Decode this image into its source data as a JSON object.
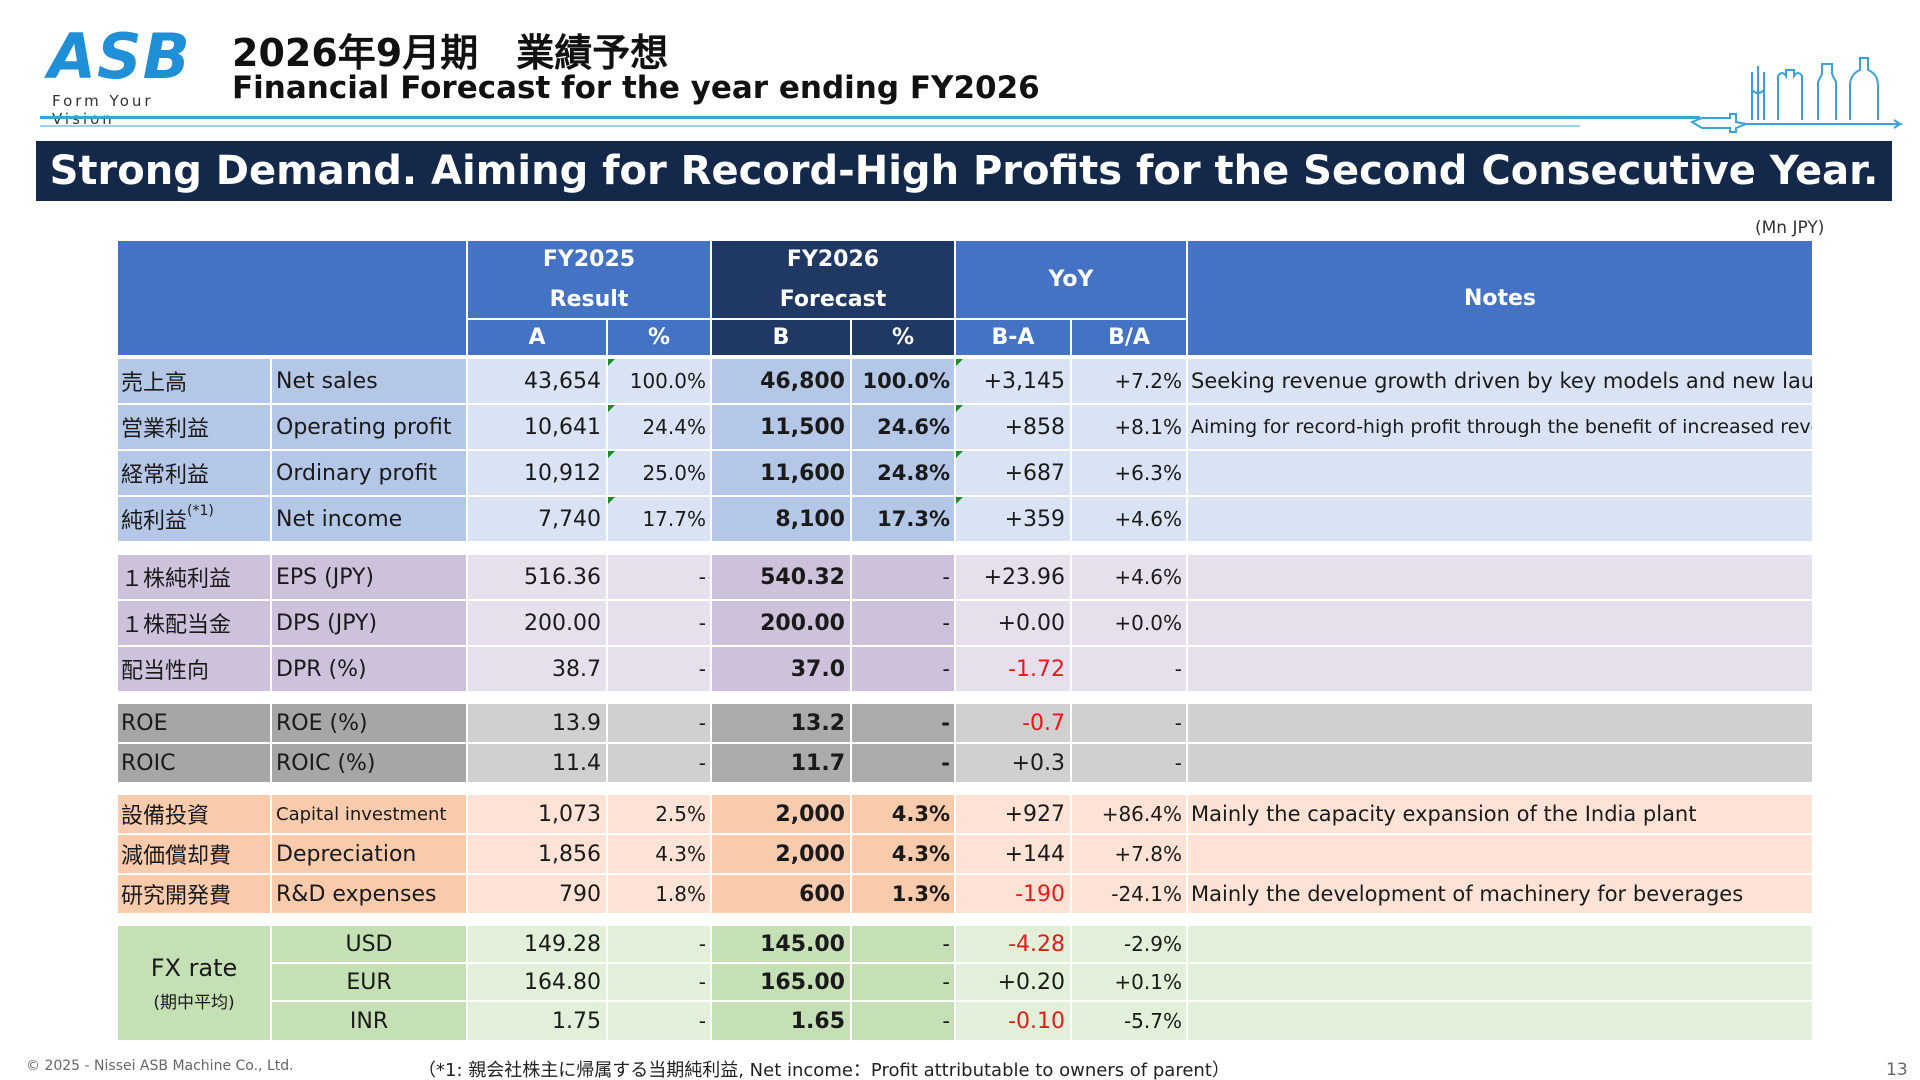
{
  "header": {
    "logo": "ASB",
    "logo_tagline": "Form Your Vision",
    "title_jp": "2026年9月期　業績予想",
    "title_en": "Financial Forecast for the year ending FY2026"
  },
  "banner": "Strong Demand. Aiming for Record-High Profits for the Second Consecutive Year.",
  "unit": "(Mn JPY)",
  "table_header": {
    "fy2025": "FY2025",
    "result": "Result",
    "fy2026": "FY2026",
    "forecast": "Forecast",
    "yoy": "YoY",
    "notes": "Notes",
    "a": "A",
    "pct": "%",
    "b": "B",
    "ba": "B-A",
    "bda": "B/A"
  },
  "rows_profit": [
    {
      "jp": "売上高",
      "en": "Net sales",
      "a": "43,654",
      "ap": "100.0%",
      "b": "46,800",
      "bp": "100.0%",
      "ba": "+3,145",
      "bda": "+7.2%",
      "notes": "Seeking revenue growth driven by key models and new launches"
    },
    {
      "jp": "営業利益",
      "en": "Operating profit",
      "a": "10,641",
      "ap": "24.4%",
      "b": "11,500",
      "bp": "24.6%",
      "ba": "+858",
      "bda": "+8.1%",
      "notes": "Aiming for record-high profit through the benefit of increased revenue"
    },
    {
      "jp": "経常利益",
      "en": "Ordinary profit",
      "a": "10,912",
      "ap": "25.0%",
      "b": "11,600",
      "bp": "24.8%",
      "ba": "+687",
      "bda": "+6.3%",
      "notes": ""
    },
    {
      "jp": "純利益",
      "jp_sup": "(*1)",
      "en": "Net income",
      "a": "7,740",
      "ap": "17.7%",
      "b": "8,100",
      "bp": "17.3%",
      "ba": "+359",
      "bda": "+4.6%",
      "notes": ""
    }
  ],
  "rows_share": [
    {
      "jp": "１株純利益",
      "en": "EPS (JPY)",
      "a": "516.36",
      "ap": "-",
      "b": "540.32",
      "bp": "-",
      "ba": "+23.96",
      "bda": "+4.6%",
      "notes": ""
    },
    {
      "jp": "１株配当金",
      "en": "DPS (JPY)",
      "a": "200.00",
      "ap": "-",
      "b": "200.00",
      "bp": "-",
      "ba": "+0.00",
      "bda": "+0.0%",
      "notes": ""
    },
    {
      "jp": "配当性向",
      "en": "DPR (%)",
      "a": "38.7",
      "ap": "-",
      "b": "37.0",
      "bp": "-",
      "ba": "-1.72",
      "bda": "-",
      "notes": ""
    }
  ],
  "rows_return": [
    {
      "jp": "ROE",
      "en": "ROE (%)",
      "a": "13.9",
      "ap": "-",
      "b": "13.2",
      "bp": "-",
      "ba": "-0.7",
      "bda": "-",
      "notes": ""
    },
    {
      "jp": "ROIC",
      "en": "ROIC (%)",
      "a": "11.4",
      "ap": "-",
      "b": "11.7",
      "bp": "-",
      "ba": "+0.3",
      "bda": "-",
      "notes": ""
    }
  ],
  "rows_invest": [
    {
      "jp": "設備投資",
      "en": "Capital investment",
      "a": "1,073",
      "ap": "2.5%",
      "b": "2,000",
      "bp": "4.3%",
      "ba": "+927",
      "bda": "+86.4%",
      "notes": "Mainly the capacity expansion of the India plant"
    },
    {
      "jp": "減価償却費",
      "en": "Depreciation",
      "a": "1,856",
      "ap": "4.3%",
      "b": "2,000",
      "bp": "4.3%",
      "ba": "+144",
      "bda": "+7.8%",
      "notes": ""
    },
    {
      "jp": "研究開発費",
      "en": "R&D expenses",
      "a": "790",
      "ap": "1.8%",
      "b": "600",
      "bp": "1.3%",
      "ba": "-190",
      "bda": "-24.1%",
      "notes": "Mainly the development of machinery for beverages"
    }
  ],
  "fx": {
    "label": "FX rate",
    "sub": "(期中平均)",
    "rows": [
      {
        "cur": "USD",
        "a": "149.28",
        "ap": "-",
        "b": "145.00",
        "bp": "-",
        "ba": "-4.28",
        "bda": "-2.9%",
        "notes": ""
      },
      {
        "cur": "EUR",
        "a": "164.80",
        "ap": "-",
        "b": "165.00",
        "bp": "-",
        "ba": "+0.20",
        "bda": "+0.1%",
        "notes": ""
      },
      {
        "cur": "INR",
        "a": "1.75",
        "ap": "-",
        "b": "1.65",
        "bp": "-",
        "ba": "-0.10",
        "bda": "-5.7%",
        "notes": ""
      }
    ]
  },
  "footer": {
    "copyright": "© 2025 - Nissei ASB Machine Co., Ltd.",
    "note": "（*1: 親会社株主に帰属する当期純利益, Net income：Profit attributable to owners of parent）",
    "page": "13"
  },
  "colors": {
    "banner": "#14294a",
    "header_blue": "#4472c4",
    "header_dark": "#203864",
    "negative": "#e31b1b",
    "logo": "#1f8fd8"
  }
}
